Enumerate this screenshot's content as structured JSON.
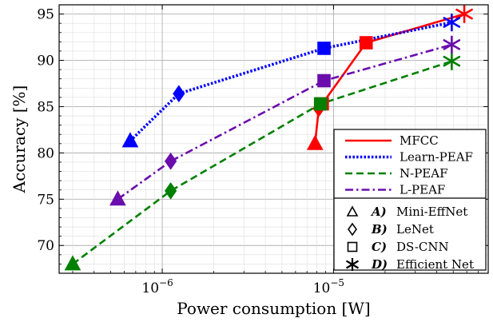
{
  "chart_data": {
    "type": "line",
    "xscale": "log",
    "xlabel": "Power consumption [W]",
    "ylabel": "Accuracy [%]",
    "xlim": [
      2.5e-07,
      8e-05
    ],
    "ylim": [
      67,
      96
    ],
    "yticks": [
      70,
      75,
      80,
      85,
      90,
      95
    ],
    "xticks": [
      {
        "value": 1e-06,
        "label": "10",
        "exp": "−6"
      },
      {
        "value": 1e-05,
        "label": "10",
        "exp": "−5"
      }
    ],
    "grid": true,
    "legend_position": "lower right",
    "colors": {
      "MFCC": "#ff0000",
      "Learn-PEAF": "#0000ff",
      "N-PEAF": "#008000",
      "L-PEAF": "#6a0dad"
    },
    "series": [
      {
        "name": "MFCC",
        "style": "solid",
        "x": [
          7.8e-06,
          8.2e-06,
          8.6e-06,
          1.55e-05,
          5.8e-05
        ],
        "y": [
          81.0,
          84.8,
          85.3,
          91.9,
          95.0
        ]
      },
      {
        "name": "Learn-PEAF",
        "style": "dotted",
        "x": [
          6.5e-07,
          1.25e-06,
          8.8e-06,
          4.9e-05
        ],
        "y": [
          81.3,
          86.4,
          91.3,
          94.1
        ]
      },
      {
        "name": "N-PEAF",
        "style": "dashed",
        "x": [
          3e-07,
          1.12e-06,
          8.4e-06,
          4.9e-05
        ],
        "y": [
          68.0,
          75.9,
          85.3,
          89.9
        ]
      },
      {
        "name": "L-PEAF",
        "style": "dashdot",
        "x": [
          5.5e-07,
          1.12e-06,
          8.8e-06,
          4.9e-05
        ],
        "y": [
          75.0,
          79.1,
          87.8,
          91.7
        ]
      }
    ],
    "marker_legend": [
      {
        "marker": "triangle",
        "key": "A)",
        "label": "Mini-EffNet"
      },
      {
        "marker": "diamond",
        "key": "B)",
        "label": "LeNet"
      },
      {
        "marker": "square",
        "key": "C)",
        "label": "DS-CNN"
      },
      {
        "marker": "star",
        "key": "D)",
        "label": "Efficient Net"
      }
    ]
  }
}
